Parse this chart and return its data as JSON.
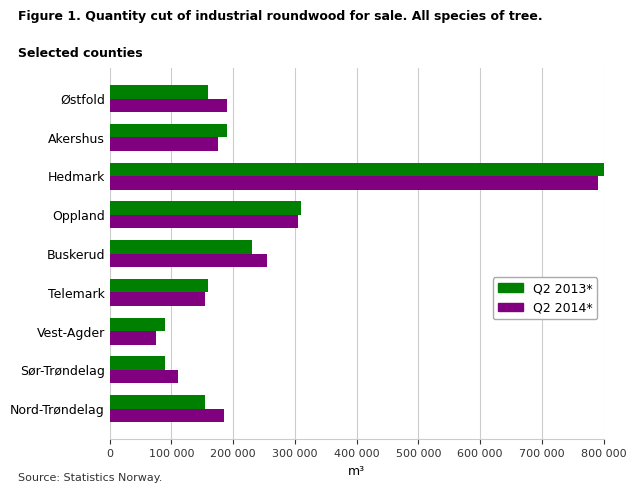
{
  "title_line1": "Figure 1. Quantity cut of industrial roundwood for sale. All species of tree.",
  "title_line2": "Selected counties",
  "counties": [
    "Østfold",
    "Akershus",
    "Hedmark",
    "Oppland",
    "Buskerud",
    "Telemark",
    "Vest-Agder",
    "Sør-Trøndelag",
    "Nord-Trøndelag"
  ],
  "q2_2013": [
    160000,
    190000,
    810000,
    310000,
    230000,
    160000,
    90000,
    90000,
    155000
  ],
  "q2_2014": [
    190000,
    175000,
    790000,
    305000,
    255000,
    155000,
    75000,
    110000,
    185000
  ],
  "color_2013": "#008000",
  "color_2014": "#800080",
  "xlabel": "m³",
  "legend_2013": "Q2 2013*",
  "legend_2014": "Q2 2014*",
  "source": "Source: Statistics Norway.",
  "xlim": [
    0,
    800000
  ],
  "xticks": [
    0,
    100000,
    200000,
    300000,
    400000,
    500000,
    600000,
    700000,
    800000
  ],
  "xticklabels": [
    "0",
    "100 000",
    "200 000",
    "300 000",
    "400 000",
    "500 000",
    "600 000",
    "700 000",
    "800 000"
  ],
  "background_color": "#ffffff",
  "grid_color": "#cccccc"
}
